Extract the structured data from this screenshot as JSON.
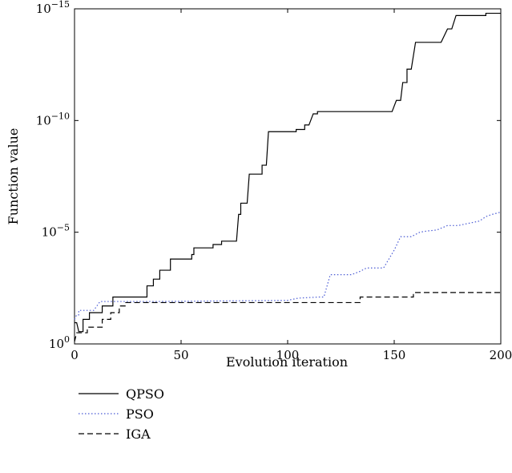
{
  "chart_data": {
    "type": "line",
    "title": "",
    "xlabel": "Evolution iteration",
    "ylabel": "Function value",
    "xlim": [
      0,
      200
    ],
    "ylim_log10": [
      -15,
      0
    ],
    "yscale": "log",
    "grid": false,
    "legend_position": "below-left",
    "x_ticks": [
      {
        "value": 0,
        "label": "0"
      },
      {
        "value": 50,
        "label": "50"
      },
      {
        "value": 100,
        "label": "100"
      },
      {
        "value": 150,
        "label": "150"
      },
      {
        "value": 200,
        "label": "200"
      }
    ],
    "y_ticks": [
      {
        "log10": 0,
        "base": "10",
        "exp": "0"
      },
      {
        "log10": -5,
        "base": "10",
        "exp": "−5"
      },
      {
        "log10": -10,
        "base": "10",
        "exp": "−10"
      },
      {
        "log10": -15,
        "base": "10",
        "exp": "−15"
      }
    ],
    "series": [
      {
        "name": "QPSO",
        "color": "#000000",
        "dash": "solid",
        "points_log10": [
          [
            0,
            -0.95
          ],
          [
            1,
            -0.95
          ],
          [
            2,
            -0.55
          ],
          [
            4,
            -0.55
          ],
          [
            4,
            -1.1
          ],
          [
            7,
            -1.1
          ],
          [
            7,
            -1.4
          ],
          [
            13,
            -1.4
          ],
          [
            13,
            -1.7
          ],
          [
            18,
            -1.7
          ],
          [
            18,
            -2.1
          ],
          [
            34,
            -2.1
          ],
          [
            34,
            -2.6
          ],
          [
            37,
            -2.6
          ],
          [
            37,
            -2.9
          ],
          [
            40,
            -2.9
          ],
          [
            40,
            -3.3
          ],
          [
            44,
            -3.3
          ],
          [
            44,
            -3.3
          ],
          [
            45,
            -3.3
          ],
          [
            45,
            -3.8
          ],
          [
            55,
            -3.8
          ],
          [
            55,
            -4.0
          ],
          [
            56,
            -4.0
          ],
          [
            56,
            -4.3
          ],
          [
            65,
            -4.3
          ],
          [
            65,
            -4.45
          ],
          [
            69,
            -4.45
          ],
          [
            69,
            -4.6
          ],
          [
            76,
            -4.6
          ],
          [
            77,
            -5.8
          ],
          [
            78,
            -5.8
          ],
          [
            78,
            -6.3
          ],
          [
            81,
            -6.3
          ],
          [
            82,
            -7.6
          ],
          [
            88,
            -7.6
          ],
          [
            88,
            -8.0
          ],
          [
            90,
            -8.0
          ],
          [
            91,
            -9.5
          ],
          [
            104,
            -9.5
          ],
          [
            104,
            -9.6
          ],
          [
            108,
            -9.6
          ],
          [
            108,
            -9.8
          ],
          [
            110,
            -9.8
          ],
          [
            112,
            -10.3
          ],
          [
            114,
            -10.3
          ],
          [
            114,
            -10.4
          ],
          [
            149,
            -10.4
          ],
          [
            151,
            -10.9
          ],
          [
            153,
            -10.9
          ],
          [
            154,
            -11.7
          ],
          [
            156,
            -11.7
          ],
          [
            156,
            -12.3
          ],
          [
            158,
            -12.3
          ],
          [
            160,
            -13.5
          ],
          [
            172,
            -13.5
          ],
          [
            175,
            -14.1
          ],
          [
            177,
            -14.1
          ],
          [
            179,
            -14.7
          ],
          [
            193,
            -14.7
          ],
          [
            193,
            -14.8
          ],
          [
            200,
            -14.8
          ]
        ]
      },
      {
        "name": "PSO",
        "color": "#4a5bd4",
        "dash": "dotted",
        "points_log10": [
          [
            0,
            -1.1
          ],
          [
            1,
            -1.3
          ],
          [
            2,
            -1.3
          ],
          [
            2,
            -1.5
          ],
          [
            9,
            -1.5
          ],
          [
            12,
            -1.9
          ],
          [
            40,
            -1.9
          ],
          [
            100,
            -1.95
          ],
          [
            105,
            -2.05
          ],
          [
            115,
            -2.1
          ],
          [
            117,
            -2.1
          ],
          [
            120,
            -3.1
          ],
          [
            125,
            -3.1
          ],
          [
            130,
            -3.1
          ],
          [
            134,
            -3.25
          ],
          [
            137,
            -3.4
          ],
          [
            145,
            -3.4
          ],
          [
            150,
            -4.2
          ],
          [
            153,
            -4.8
          ],
          [
            158,
            -4.8
          ],
          [
            162,
            -5.0
          ],
          [
            165,
            -5.05
          ],
          [
            170,
            -5.1
          ],
          [
            175,
            -5.3
          ],
          [
            180,
            -5.3
          ],
          [
            190,
            -5.5
          ],
          [
            193,
            -5.7
          ],
          [
            196,
            -5.8
          ],
          [
            200,
            -5.9
          ]
        ]
      },
      {
        "name": "IGA",
        "color": "#000000",
        "dash": "dashed",
        "points_log10": [
          [
            0,
            -0.1
          ],
          [
            1,
            -0.5
          ],
          [
            6,
            -0.5
          ],
          [
            6,
            -0.75
          ],
          [
            13,
            -0.75
          ],
          [
            13,
            -1.1
          ],
          [
            17,
            -1.1
          ],
          [
            17,
            -1.4
          ],
          [
            21,
            -1.4
          ],
          [
            21,
            -1.7
          ],
          [
            24,
            -1.7
          ],
          [
            24,
            -1.85
          ],
          [
            100,
            -1.85
          ],
          [
            120,
            -1.85
          ],
          [
            134,
            -1.85
          ],
          [
            134,
            -2.1
          ],
          [
            159,
            -2.1
          ],
          [
            159,
            -2.3
          ],
          [
            200,
            -2.3
          ]
        ]
      }
    ]
  }
}
